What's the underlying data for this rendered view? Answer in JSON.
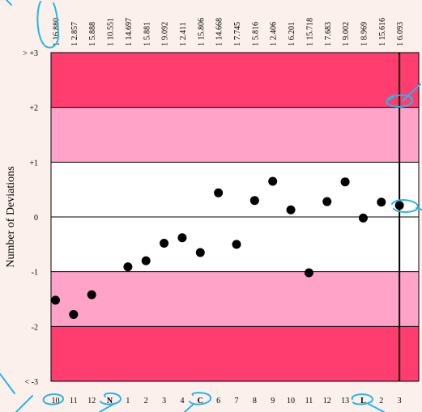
{
  "chart_data": {
    "type": "scatter",
    "ylabel": "Number of Deviations",
    "y_ticks": [
      "> +3",
      "+2",
      "+1",
      "0",
      "-1",
      "-2",
      "< -3"
    ],
    "y_tick_values": [
      3,
      2,
      1,
      0,
      -1,
      -2,
      -3
    ],
    "ylim": [
      -3,
      3
    ],
    "top_labels": [
      "1 16.880",
      "1 2.857",
      "1 5.888",
      "1 10.551",
      "1 14.697",
      "1 5.881",
      "1 9.092",
      "1 2.411",
      "1 15.806",
      "1 14.668",
      "1 7.745",
      "1 5.816",
      "1 2.406",
      "1 6.201",
      "1 15.718",
      "1 7.683",
      "1 9.002",
      "1 8.969",
      "1 15.616",
      "1 6.093"
    ],
    "bottom_labels": [
      "10",
      "11",
      "12",
      "N",
      "1",
      "2",
      "3",
      "4",
      "C",
      "6",
      "7",
      "8",
      "9",
      "10",
      "11",
      "12",
      "13",
      "L",
      "2",
      "3"
    ],
    "highlighted_bottom_labels": [
      "N",
      "C",
      "L"
    ],
    "values": [
      -1.52,
      -1.78,
      -1.42,
      null,
      -0.91,
      -0.8,
      -0.48,
      -0.38,
      -0.65,
      0.44,
      -0.5,
      0.3,
      0.65,
      0.13,
      -1.02,
      0.28,
      0.64,
      -0.02,
      0.27,
      0.21
    ],
    "bands": [
      {
        "from": 2,
        "to": 3,
        "color": "#ff3d6e"
      },
      {
        "from": 1,
        "to": 2,
        "color": "#ffa3c9"
      },
      {
        "from": -1,
        "to": 1,
        "color": "#ffffff"
      },
      {
        "from": -2,
        "to": -1,
        "color": "#ffa3c9"
      },
      {
        "from": -3,
        "to": -2,
        "color": "#ff3d6e"
      }
    ],
    "marker_color": "#000000",
    "current_index": 19,
    "annotation_color": "#29b6e6",
    "grid": true
  }
}
